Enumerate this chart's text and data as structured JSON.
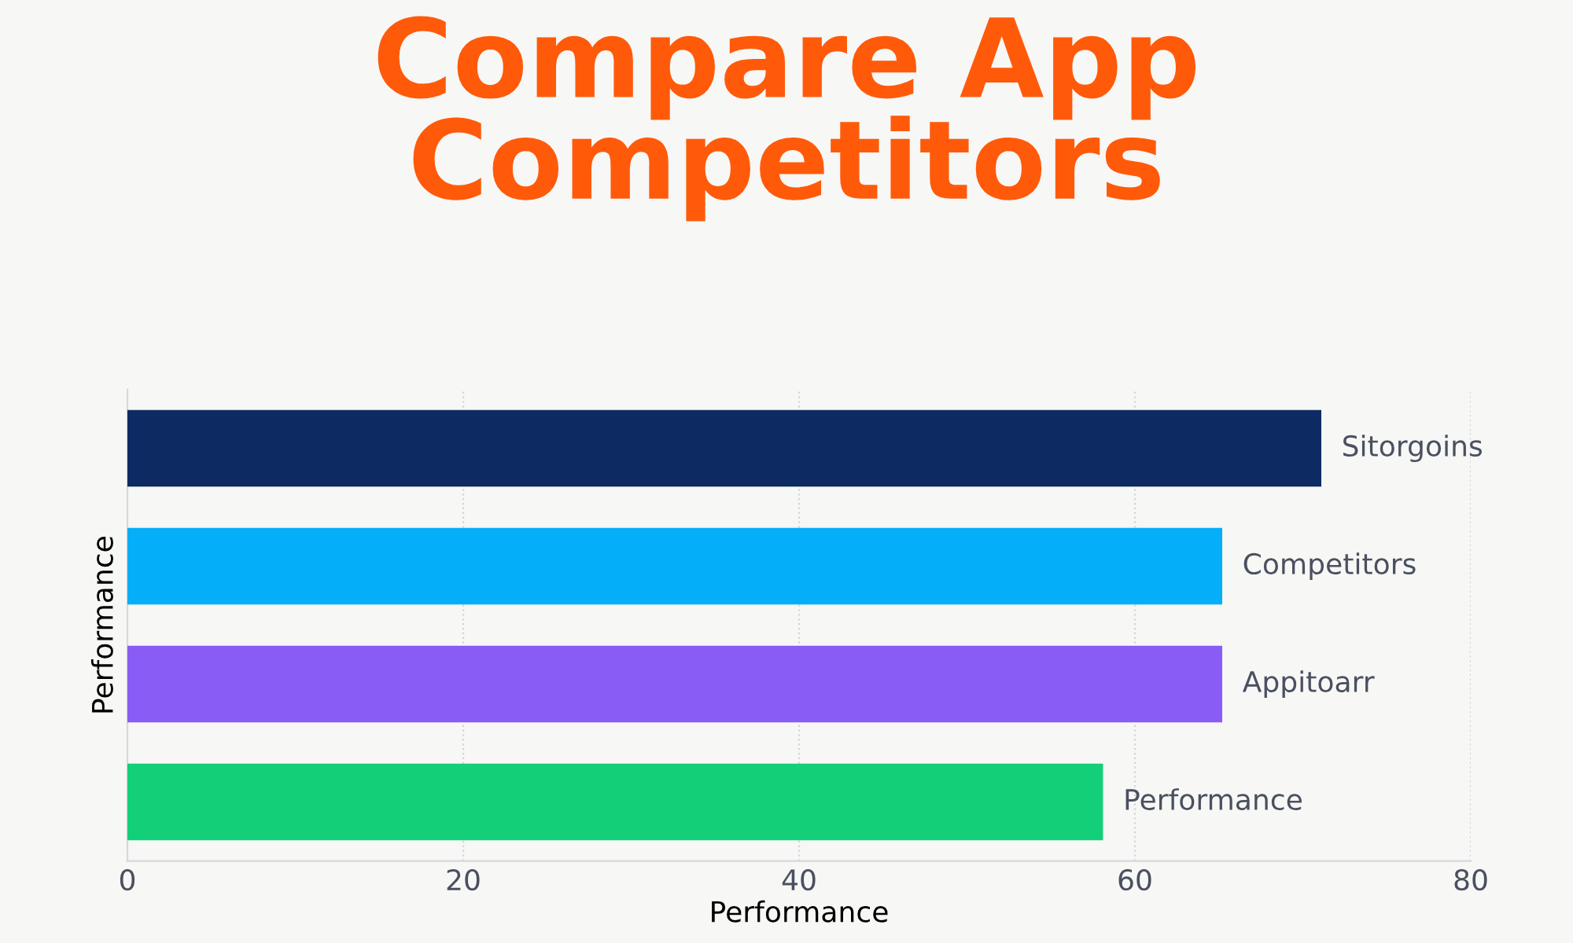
{
  "chart_data": {
    "type": "bar",
    "orientation": "horizontal",
    "title": "Compare App\nCompetitors",
    "categories": [
      "Sitorgoins",
      "Competitors",
      "Appitoarr",
      "Performance"
    ],
    "values": [
      71.1,
      65.2,
      65.2,
      58.1
    ],
    "colors": [
      "#0d2a63",
      "#04aef8",
      "#8a5cf6",
      "#12cf78"
    ],
    "xlim": [
      0,
      80
    ],
    "xticks": [
      0,
      20,
      40,
      60,
      80
    ],
    "xlabel": "Performance",
    "ylabel": "Performance",
    "grid": "x",
    "tick_labels": "x"
  }
}
